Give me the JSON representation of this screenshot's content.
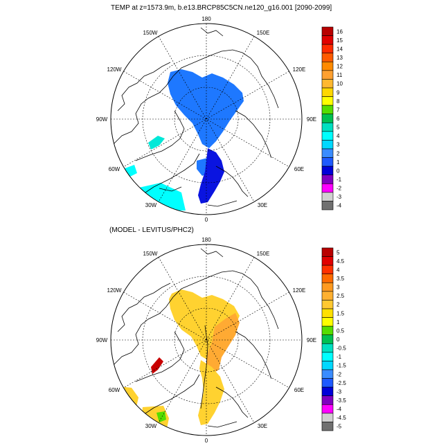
{
  "title_top": "TEMP at z=1573.9m, b.e13.BRCP85C5CN.ne120_g16.001 [2090-2099]",
  "title_bottom": "(MODEL - LEVITUS/PHC2)",
  "longitude_labels": {
    "top": "180",
    "upper_left": "150W",
    "upper_right": "150E",
    "left_upper": "120W",
    "right_upper": "120E",
    "left": "90W",
    "right": "90E",
    "left_lower": "60W",
    "right_lower": "60E",
    "lower_left": "30W",
    "lower_right": "30E",
    "bottom": "0"
  },
  "colorbar_top": {
    "labels": [
      "16",
      "15",
      "14",
      "13",
      "12",
      "11",
      "10",
      "9",
      "8",
      "7",
      "6",
      "5",
      "4",
      "3",
      "2",
      "1",
      "0",
      "-1",
      "-2",
      "-3",
      "-4"
    ],
    "colors": [
      "#b80000",
      "#e00000",
      "#ff2a00",
      "#ff5a00",
      "#ff8a00",
      "#ffa030",
      "#ffb830",
      "#ffd700",
      "#ffff00",
      "#55dd00",
      "#00c050",
      "#00e0c0",
      "#00ffff",
      "#00d8ff",
      "#3a8cff",
      "#1e5aff",
      "#0000d8",
      "#8000c0",
      "#ff00ff",
      "#d0d0d0",
      "#707070"
    ]
  },
  "colorbar_bottom": {
    "labels": [
      "5",
      "4.5",
      "4",
      "3.5",
      "3",
      "2.5",
      "2",
      "1.5",
      "1",
      "0.5",
      "0",
      "-0.5",
      "-1",
      "-1.5",
      "-2",
      "-2.5",
      "-3",
      "-3.5",
      "-4",
      "-4.5",
      "-5"
    ],
    "colors": [
      "#b80000",
      "#e00000",
      "#ff3000",
      "#ff6a00",
      "#ff9a20",
      "#ffb030",
      "#ffc830",
      "#ffe000",
      "#ffff00",
      "#55dd00",
      "#00c050",
      "#00e0c0",
      "#00ffff",
      "#00d8ff",
      "#3a8cff",
      "#1e5aff",
      "#0000d8",
      "#8000c0",
      "#ff00ff",
      "#d0d0d0",
      "#707070"
    ]
  },
  "fill_colors": {
    "land": "#ffffff",
    "top_field": "#1e78ff",
    "top_cold": "#0a14e0",
    "top_cyan": "#00ffff",
    "top_teal": "#00e8d8",
    "bottom_field": "#ffd230",
    "bottom_orange": "#ffaa33",
    "bottom_red": "#c80000",
    "bottom_green": "#55dd00"
  }
}
